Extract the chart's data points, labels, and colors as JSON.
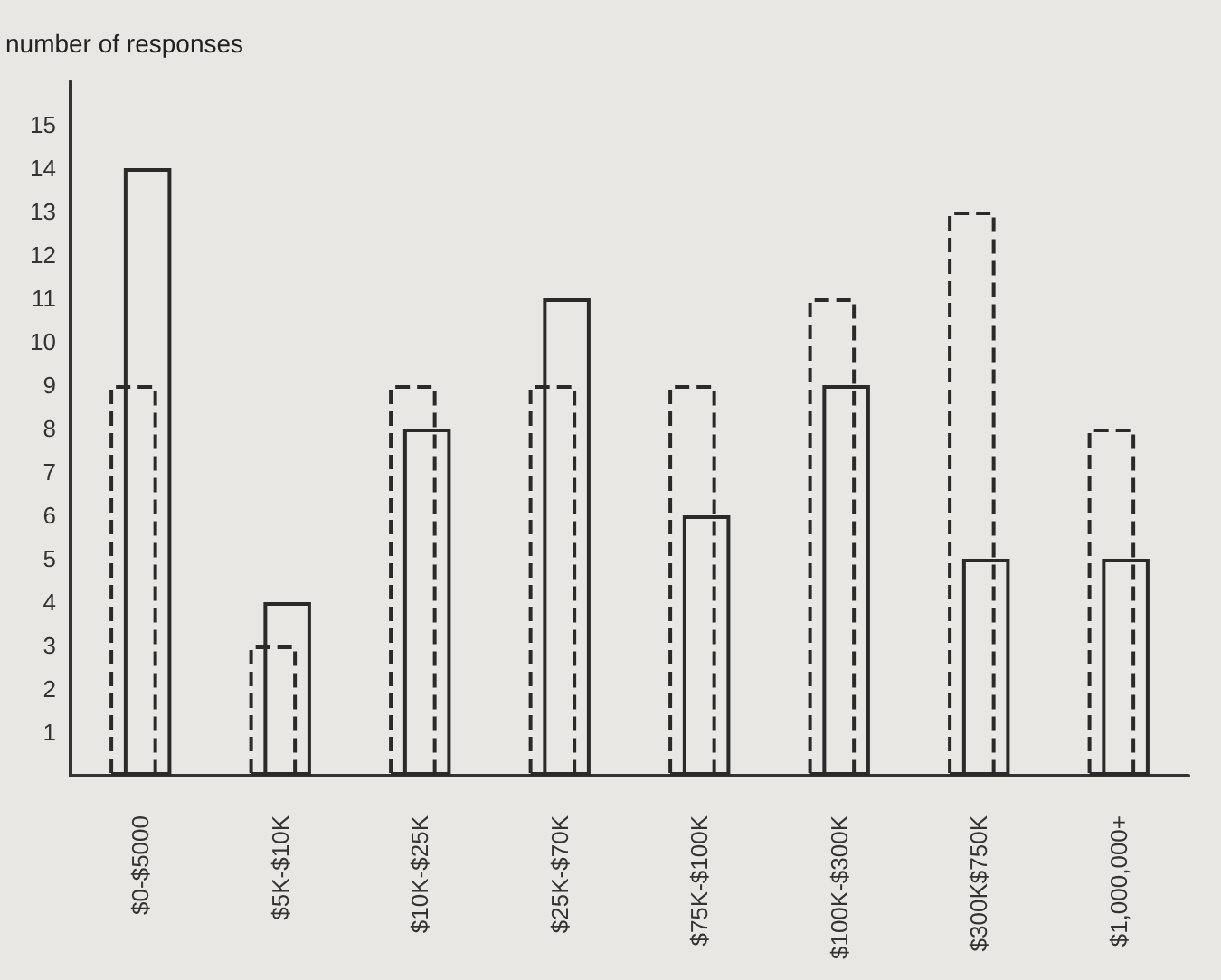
{
  "chart_data": {
    "type": "bar",
    "ylabel": "number of responses",
    "categories": [
      "$0-$5000",
      "$5K-$10K",
      "$10K-$25K",
      "$25K-$70K",
      "$75K-$100K",
      "$100K-$300K",
      "$300K$750K",
      "$1,000,000+"
    ],
    "series": [
      {
        "color": "#2a2a2a",
        "line_style": "dashed",
        "values": [
          9,
          3,
          9,
          9,
          9,
          11,
          13,
          8
        ]
      },
      {
        "color": "#2a2a2a",
        "line_style": "solid",
        "values": [
          14,
          4,
          8,
          11,
          6,
          9,
          5,
          5
        ]
      }
    ],
    "ylim": [
      0,
      16
    ],
    "yticks": [
      1,
      2,
      3,
      4,
      5,
      6,
      7,
      8,
      9,
      10,
      11,
      12,
      13,
      14,
      15
    ],
    "grid": false
  }
}
